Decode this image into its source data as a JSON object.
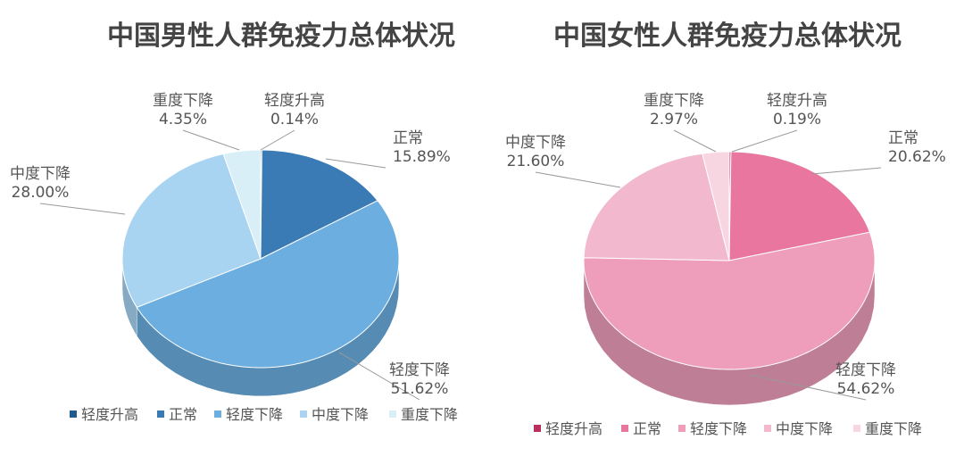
{
  "chart_data": [
    {
      "type": "pie",
      "title": "中国男性人群免疫力总体状况",
      "categories": [
        "轻度升高",
        "正常",
        "轻度下降",
        "中度下降",
        "重度下降"
      ],
      "values": [
        0.14,
        15.89,
        51.62,
        28.0,
        4.35
      ],
      "value_labels": [
        "0.14%",
        "15.89%",
        "51.62%",
        "28.00%",
        "4.35%"
      ],
      "colors": [
        "#1f5b8e",
        "#3a7bb6",
        "#6caee0",
        "#a8d4f2",
        "#d8eff8"
      ],
      "legend": "bottom"
    },
    {
      "type": "pie",
      "title": "中国女性人群免疫力总体状况",
      "categories": [
        "轻度升高",
        "正常",
        "轻度下降",
        "中度下降",
        "重度下降"
      ],
      "values": [
        0.19,
        20.62,
        54.62,
        21.6,
        2.97
      ],
      "value_labels": [
        "0.19%",
        "20.62%",
        "54.62%",
        "21.60%",
        "2.97%"
      ],
      "colors": [
        "#b8305f",
        "#e8769e",
        "#ee9dbb",
        "#f2b8cd",
        "#f7d6e2"
      ],
      "legend": "bottom"
    }
  ]
}
